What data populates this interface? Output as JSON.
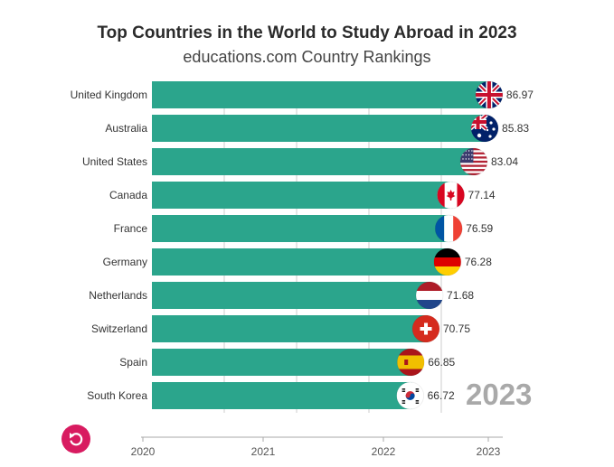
{
  "chart_data": {
    "type": "bar",
    "orientation": "horizontal",
    "title": "Top Countries in the World to Study Abroad in 2023",
    "subtitle": "educations.com Country Rankings",
    "categories": [
      "United Kingdom",
      "Australia",
      "United States",
      "Canada",
      "France",
      "Germany",
      "Netherlands",
      "Switzerland",
      "Spain",
      "South Korea"
    ],
    "values": [
      86.97,
      85.83,
      83.04,
      77.14,
      76.59,
      76.28,
      71.68,
      70.75,
      66.85,
      66.72
    ],
    "value_labels": [
      "86.97",
      "85.83",
      "83.04",
      "77.14",
      "76.59",
      "76.28",
      "71.68",
      "70.75",
      "66.85",
      "66.72"
    ],
    "flag_icons": [
      "flag-uk-icon",
      "flag-australia-icon",
      "flag-usa-icon",
      "flag-canada-icon",
      "flag-france-icon",
      "flag-germany-icon",
      "flag-netherlands-icon",
      "flag-switzerland-icon",
      "flag-spain-icon",
      "flag-south-korea-icon"
    ],
    "xticks": [
      "2020",
      "2021",
      "2022",
      "2023"
    ],
    "xlim": [
      0,
      90
    ],
    "grid": true,
    "current_year": "2023",
    "colors": {
      "bar": "#2ba58c",
      "grid": "#cccccc",
      "replay": "#d81b60"
    }
  },
  "controls": {
    "replay_icon": "replay-icon"
  }
}
